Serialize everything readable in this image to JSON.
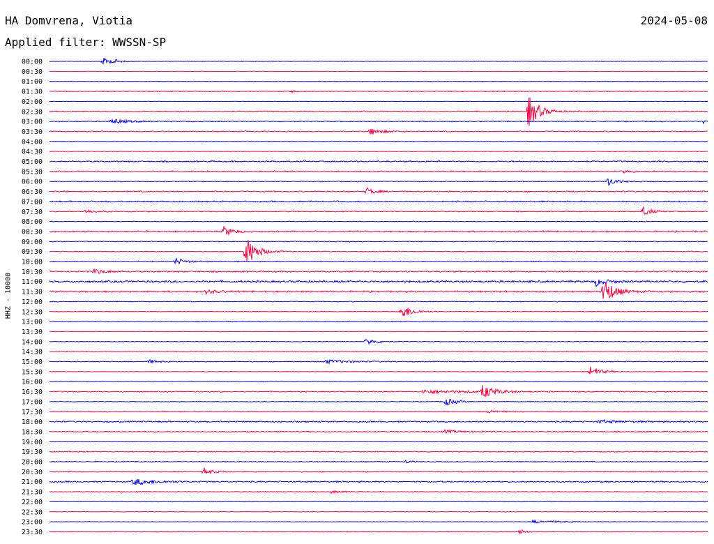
{
  "header": {
    "station": "HA Domvrena, Viotia",
    "date": "2024-05-08",
    "filter_label": "Applied filter: WWSSN-SP"
  },
  "axis": {
    "ylabel": "HHZ - 10000"
  },
  "colors": {
    "trace_a": "#0000ff",
    "trace_b": "#ff0040"
  },
  "chart_data": {
    "type": "line",
    "title": "HA Domvrena, Viotia",
    "ylabel": "HHZ - 10000",
    "row_labels": [
      "00:00",
      "00:30",
      "01:00",
      "01:30",
      "02:00",
      "02:30",
      "03:00",
      "03:30",
      "04:00",
      "04:30",
      "05:00",
      "05:30",
      "06:00",
      "06:30",
      "07:00",
      "07:30",
      "08:00",
      "08:30",
      "09:00",
      "09:30",
      "10:00",
      "10:30",
      "11:00",
      "11:30",
      "12:00",
      "12:30",
      "13:00",
      "13:30",
      "14:00",
      "14:30",
      "15:00",
      "15:30",
      "16:00",
      "16:30",
      "17:00",
      "17:30",
      "18:00",
      "18:30",
      "19:00",
      "19:30",
      "20:00",
      "20:30",
      "21:00",
      "21:30",
      "22:00",
      "22:30",
      "23:00",
      "23:30"
    ],
    "row_duration_min": 30,
    "noise_level": [
      0.3,
      0.2,
      0.3,
      0.5,
      0.2,
      0.6,
      0.6,
      0.6,
      0.3,
      0.3,
      0.8,
      0.7,
      0.5,
      0.7,
      0.8,
      0.6,
      0.4,
      0.9,
      0.5,
      0.5,
      0.6,
      0.9,
      1.2,
      1.0,
      0.5,
      0.4,
      0.5,
      0.3,
      0.4,
      0.5,
      0.5,
      0.3,
      0.3,
      0.6,
      0.5,
      0.5,
      0.8,
      0.7,
      0.3,
      0.6,
      0.6,
      0.6,
      0.8,
      0.5,
      0.3,
      0.3,
      0.3,
      0.4
    ],
    "events": [
      {
        "row": 0,
        "minute": 2.4,
        "amp": 6,
        "dur": 0.8
      },
      {
        "row": 0,
        "minute": 2.9,
        "amp": 4,
        "dur": 0.4
      },
      {
        "row": 3,
        "minute": 11.0,
        "amp": 2,
        "dur": 0.4
      },
      {
        "row": 5,
        "minute": 21.8,
        "amp": 25,
        "dur": 1.0
      },
      {
        "row": 6,
        "minute": 2.8,
        "amp": 4,
        "dur": 1.5
      },
      {
        "row": 6,
        "minute": 29.8,
        "amp": 4,
        "dur": 0.3
      },
      {
        "row": 7,
        "minute": 14.6,
        "amp": 5,
        "dur": 1.2
      },
      {
        "row": 11,
        "minute": 26.1,
        "amp": 3,
        "dur": 0.8
      },
      {
        "row": 12,
        "minute": 25.4,
        "amp": 7,
        "dur": 0.8
      },
      {
        "row": 13,
        "minute": 14.4,
        "amp": 6,
        "dur": 0.8
      },
      {
        "row": 15,
        "minute": 1.6,
        "amp": 3,
        "dur": 1.0
      },
      {
        "row": 15,
        "minute": 27.0,
        "amp": 8,
        "dur": 0.8
      },
      {
        "row": 17,
        "minute": 7.9,
        "amp": 8,
        "dur": 0.8
      },
      {
        "row": 19,
        "minute": 8.9,
        "amp": 25,
        "dur": 1.0
      },
      {
        "row": 20,
        "minute": 5.7,
        "amp": 5,
        "dur": 1.0
      },
      {
        "row": 21,
        "minute": 2.0,
        "amp": 4,
        "dur": 1.2
      },
      {
        "row": 22,
        "minute": 24.9,
        "amp": 6,
        "dur": 1.0
      },
      {
        "row": 23,
        "minute": 25.2,
        "amp": 22,
        "dur": 1.0
      },
      {
        "row": 23,
        "minute": 7.1,
        "amp": 3,
        "dur": 1.0
      },
      {
        "row": 25,
        "minute": 16.0,
        "amp": 12,
        "dur": 1.0
      },
      {
        "row": 28,
        "minute": 14.4,
        "amp": 5,
        "dur": 1.0
      },
      {
        "row": 30,
        "minute": 4.5,
        "amp": 3,
        "dur": 0.8
      },
      {
        "row": 30,
        "minute": 12.5,
        "amp": 3,
        "dur": 2.5
      },
      {
        "row": 31,
        "minute": 24.6,
        "amp": 9,
        "dur": 1.0
      },
      {
        "row": 33,
        "minute": 19.7,
        "amp": 10,
        "dur": 1.2
      },
      {
        "row": 33,
        "minute": 17.0,
        "amp": 3,
        "dur": 4.0
      },
      {
        "row": 34,
        "minute": 18.0,
        "amp": 6,
        "dur": 1.0
      },
      {
        "row": 35,
        "minute": 20.0,
        "amp": 3,
        "dur": 1.0
      },
      {
        "row": 36,
        "minute": 25.0,
        "amp": 2,
        "dur": 2.5
      },
      {
        "row": 37,
        "minute": 18.0,
        "amp": 2,
        "dur": 2.0
      },
      {
        "row": 40,
        "minute": 16.2,
        "amp": 3,
        "dur": 0.5
      },
      {
        "row": 41,
        "minute": 7.0,
        "amp": 6,
        "dur": 0.8
      },
      {
        "row": 42,
        "minute": 3.8,
        "amp": 5,
        "dur": 2.0
      },
      {
        "row": 43,
        "minute": 12.8,
        "amp": 2,
        "dur": 1.0
      },
      {
        "row": 46,
        "minute": 22.0,
        "amp": 2,
        "dur": 3.0
      },
      {
        "row": 47,
        "minute": 21.4,
        "amp": 6,
        "dur": 0.5
      }
    ]
  }
}
